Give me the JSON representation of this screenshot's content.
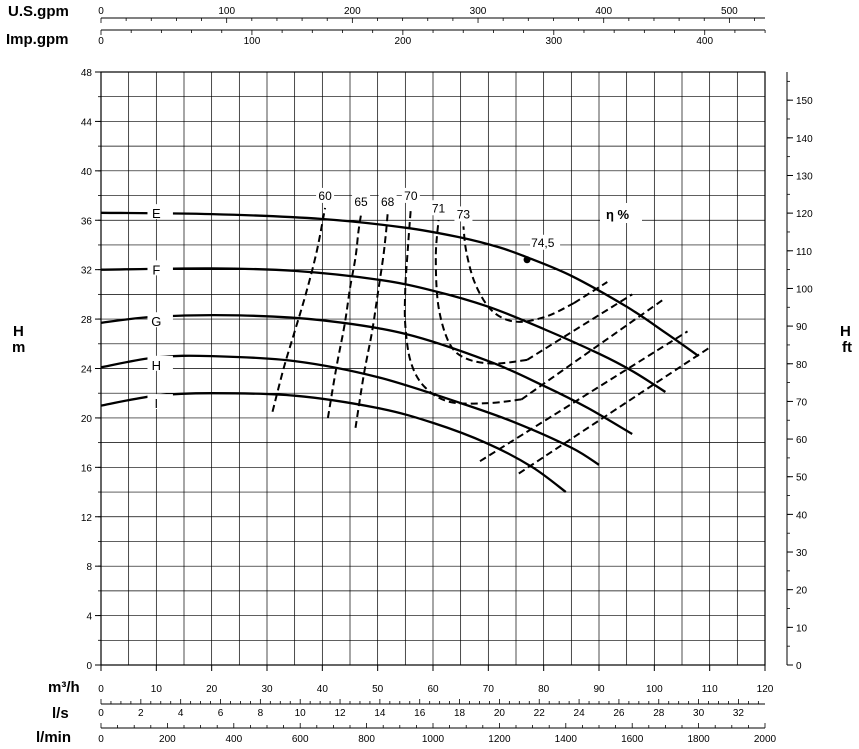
{
  "chart_data": {
    "type": "line",
    "title": "",
    "units": {
      "usgpm": "U.S.gpm",
      "impgpm": "Imp.gpm",
      "m3h": "m³/h",
      "ls": "l/s",
      "lmin": "l/min",
      "h_left": "H",
      "m_left": "m",
      "h_right": "H",
      "ft_right": "ft"
    },
    "axes": {
      "m3h": {
        "range": [
          0,
          120
        ],
        "ticks": [
          "0",
          "10",
          "20",
          "30",
          "40",
          "50",
          "60",
          "70",
          "80",
          "90",
          "100",
          "110",
          "120"
        ]
      },
      "y_m": {
        "range": [
          0,
          48
        ],
        "ticks": [
          "0",
          "4",
          "8",
          "12",
          "16",
          "20",
          "24",
          "28",
          "32",
          "36",
          "40",
          "44",
          "48"
        ]
      },
      "y_ft": {
        "ticks": [
          "0",
          "10",
          "20",
          "30",
          "40",
          "50",
          "60",
          "70",
          "80",
          "90",
          "100",
          "110",
          "120",
          "130",
          "140",
          "150"
        ]
      },
      "usgpm": {
        "ticks": [
          "0",
          "100",
          "200",
          "300",
          "400",
          "500"
        ]
      },
      "impgpm": {
        "ticks": [
          "0",
          "100",
          "200",
          "300",
          "400"
        ]
      },
      "ls": {
        "ticks": [
          "0",
          "2",
          "4",
          "6",
          "8",
          "10",
          "12",
          "14",
          "16",
          "18",
          "20",
          "22",
          "24",
          "26",
          "28",
          "30",
          "32"
        ]
      },
      "lmin": {
        "ticks": [
          "0",
          "200",
          "400",
          "600",
          "800",
          "1000",
          "1200",
          "1400",
          "1600",
          "1800",
          "2000"
        ]
      }
    },
    "grid": true,
    "series": [
      {
        "name": "E",
        "x": [
          0,
          20,
          40,
          55,
          65,
          72,
          77,
          85,
          95,
          102,
          108
        ],
        "y": [
          36.6,
          36.5,
          36.1,
          35.4,
          34.6,
          33.8,
          33.0,
          31.5,
          29.0,
          26.9,
          25.0
        ]
      },
      {
        "name": "F",
        "x": [
          0,
          20,
          35,
          50,
          60,
          70,
          80,
          90,
          96,
          102
        ],
        "y": [
          32.0,
          32.1,
          31.9,
          31.2,
          30.3,
          29.0,
          27.2,
          25.2,
          23.8,
          22.1
        ]
      },
      {
        "name": "G",
        "x": [
          0,
          10,
          25,
          40,
          55,
          70,
          80,
          88,
          96
        ],
        "y": [
          27.7,
          28.2,
          28.3,
          27.9,
          26.8,
          24.6,
          22.6,
          20.8,
          18.7
        ]
      },
      {
        "name": "H",
        "x": [
          0,
          10,
          20,
          35,
          50,
          65,
          75,
          85,
          90
        ],
        "y": [
          24.1,
          24.9,
          25.0,
          24.6,
          23.3,
          21.2,
          19.6,
          17.6,
          16.2
        ]
      },
      {
        "name": "I",
        "x": [
          0,
          10,
          20,
          35,
          50,
          60,
          70,
          78,
          84
        ],
        "y": [
          21.0,
          21.8,
          22.0,
          21.8,
          20.8,
          19.6,
          17.9,
          16.0,
          14.0
        ]
      }
    ],
    "efficiency_curves": [
      {
        "label": "60",
        "x": [
          31,
          33,
          35,
          37,
          39,
          40.5
        ],
        "y": [
          20.5,
          24,
          27,
          30,
          33.5,
          37
        ]
      },
      {
        "label": "65",
        "x": [
          41,
          42.5,
          44,
          45,
          46,
          46.5,
          47
        ],
        "y": [
          20,
          24,
          27.5,
          30.5,
          33,
          35,
          36.5
        ]
      },
      {
        "label": "68",
        "x": [
          46,
          47.5,
          49,
          50,
          51,
          51.5,
          51.8
        ],
        "y": [
          19.2,
          23.5,
          27,
          30,
          33,
          35,
          36.5
        ]
      },
      {
        "label": "70",
        "x": [
          76,
          70,
          63,
          58.5,
          56,
          55,
          55,
          55.5,
          56
        ],
        "y": [
          21.5,
          21.2,
          21.3,
          22.5,
          24.5,
          27.5,
          30.5,
          34,
          37
        ]
      },
      {
        "label": "71",
        "x": [
          77,
          71,
          66,
          63,
          61,
          60.5,
          61
        ],
        "y": [
          24.7,
          24.4,
          24.8,
          26,
          29,
          33,
          36
        ]
      },
      {
        "label": "73",
        "x": [
          85.5,
          81,
          76.5,
          73,
          70,
          67.5,
          66,
          65.5
        ],
        "y": [
          29.3,
          28.3,
          27.8,
          28,
          29,
          31,
          33.5,
          35.5
        ]
      }
    ],
    "efficiency_tails": [
      {
        "x": [
          85.5,
          91.5
        ],
        "y": [
          29.3,
          31.0
        ]
      },
      {
        "x": [
          77,
          96
        ],
        "y": [
          24.7,
          30.0
        ]
      },
      {
        "x": [
          76,
          102
        ],
        "y": [
          21.5,
          29.7
        ]
      },
      {
        "x": [
          68.5,
          106
        ],
        "y": [
          16.5,
          27.0
        ]
      },
      {
        "x": [
          75.5,
          110
        ],
        "y": [
          15.5,
          25.7
        ]
      }
    ],
    "best_efficiency_point": {
      "label": "74,5",
      "x": 77,
      "y": 32.8
    },
    "efficiency_title": "η %",
    "legend": "none"
  }
}
